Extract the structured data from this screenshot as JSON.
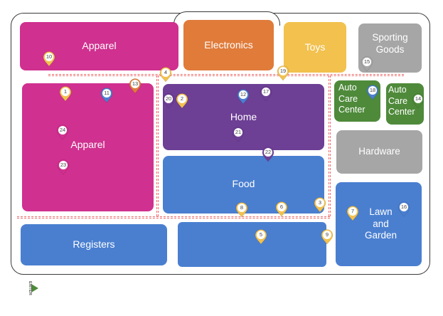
{
  "store_map": {
    "departments": {
      "apparel_top": {
        "label": "Apparel",
        "color": "#d0308f"
      },
      "electronics": {
        "label": "Electronics",
        "color": "#e07b3a"
      },
      "toys": {
        "label": "Toys",
        "color": "#f2c14e"
      },
      "sporting_goods": {
        "label": "Sporting Goods",
        "color": "#a6a6a6"
      },
      "apparel_main": {
        "label": "Apparel",
        "color": "#d0308f"
      },
      "home": {
        "label": "Home",
        "color": "#6d3f95"
      },
      "food": {
        "label": "Food",
        "color": "#4a7fd0"
      },
      "auto_care_1": {
        "label": "Auto Care Center",
        "color": "#4e8a3a"
      },
      "auto_care_2": {
        "label": "Auto Care Center",
        "color": "#4e8a3a"
      },
      "hardware": {
        "label": "Hardware",
        "color": "#a6a6a6"
      },
      "lawn_garden": {
        "label": "Lawn and Garden",
        "color": "#4a7fd0"
      },
      "registers": {
        "label": "Registers",
        "color": "#4a7fd0"
      },
      "front_block": {
        "label": "",
        "color": "#4a7fd0"
      }
    },
    "pins": [
      {
        "id": "pin-1",
        "num": "1",
        "color": "#f2c14e"
      },
      {
        "id": "pin-2",
        "num": "2",
        "color": "#f2c14e"
      },
      {
        "id": "pin-3",
        "num": "3",
        "color": "#f2c14e"
      },
      {
        "id": "pin-4",
        "num": "4",
        "color": "#f2c14e"
      },
      {
        "id": "pin-5",
        "num": "5",
        "color": "#f2c14e"
      },
      {
        "id": "pin-6",
        "num": "6",
        "color": "#f2c14e"
      },
      {
        "id": "pin-7",
        "num": "7",
        "color": "#f2c14e"
      },
      {
        "id": "pin-8",
        "num": "8",
        "color": "#f2c14e"
      },
      {
        "id": "pin-9",
        "num": "9",
        "color": "#f2c14e"
      },
      {
        "id": "pin-10",
        "num": "10",
        "color": "#f2c14e"
      },
      {
        "id": "pin-11",
        "num": "11",
        "color": "#4a7fd0"
      },
      {
        "id": "pin-12",
        "num": "12",
        "color": "#4a7fd0"
      },
      {
        "id": "pin-13",
        "num": "13",
        "color": "#e07b3a"
      },
      {
        "id": "pin-14",
        "num": "14",
        "color": "#4e8a3a"
      },
      {
        "id": "pin-15",
        "num": "15",
        "color": "#a6a6a6"
      },
      {
        "id": "pin-16",
        "num": "16",
        "color": "#4a7fd0"
      },
      {
        "id": "pin-17",
        "num": "17",
        "color": "#6d3f95"
      },
      {
        "id": "pin-18",
        "num": "18",
        "color": "#4a7fd0"
      },
      {
        "id": "pin-19",
        "num": "19",
        "color": "#f2c14e"
      },
      {
        "id": "pin-20",
        "num": "20",
        "color": "#6d3f95"
      },
      {
        "id": "pin-21",
        "num": "21",
        "color": "#6d3f95"
      },
      {
        "id": "pin-22",
        "num": "22",
        "color": "#6d3f95"
      },
      {
        "id": "pin-23",
        "num": "23",
        "color": "#d0308f"
      },
      {
        "id": "pin-24",
        "num": "24",
        "color": "#d0308f"
      }
    ],
    "entrance": {
      "label": "ENTER",
      "color": "#4e8a3a"
    },
    "path_color": "#ef6b6b"
  }
}
